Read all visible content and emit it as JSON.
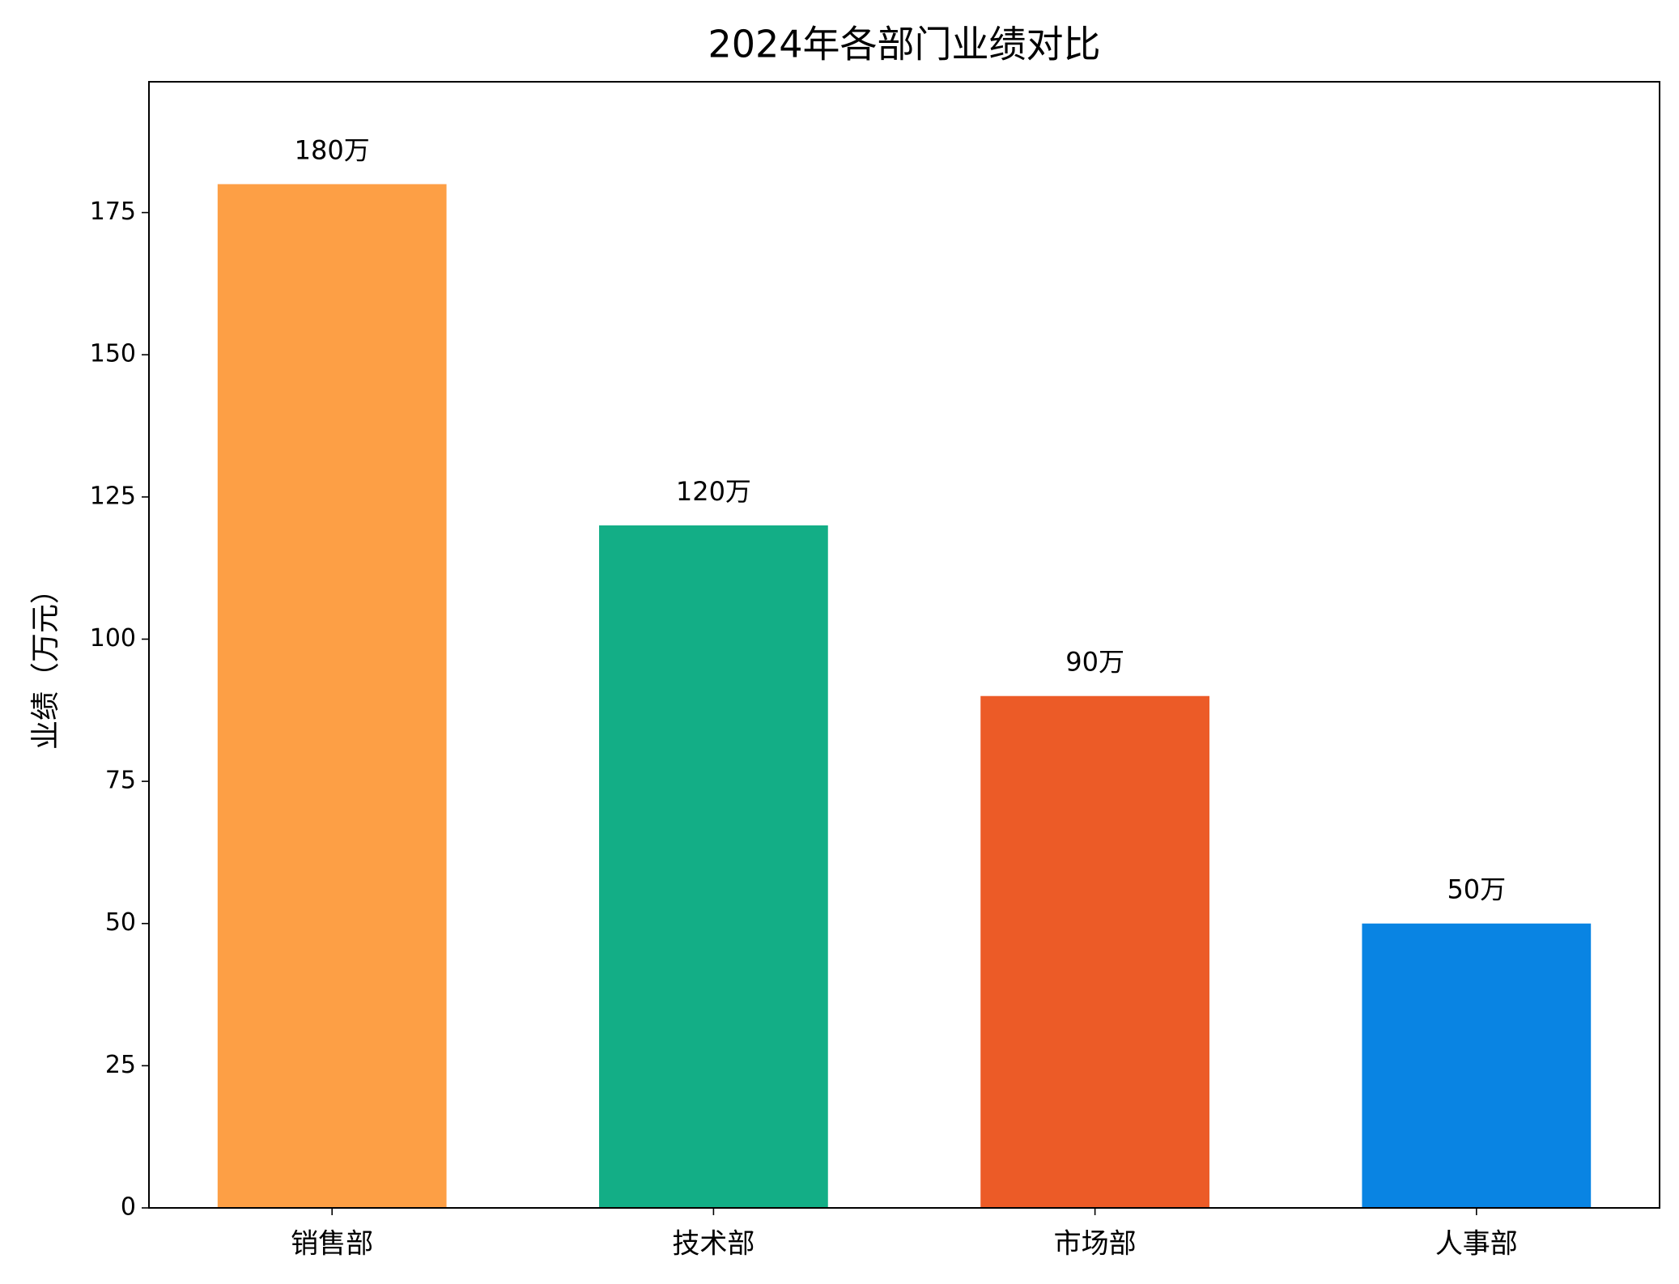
{
  "chart_data": {
    "type": "bar",
    "title": "2024年各部门业绩对比",
    "ylabel": "业绩（万元）",
    "categories": [
      "销售部",
      "技术部",
      "市场部",
      "人事部"
    ],
    "values": [
      180,
      120,
      90,
      50
    ],
    "value_labels": [
      "180万",
      "120万",
      "90万",
      "50万"
    ],
    "colors": [
      "#fd9f45",
      "#13ae86",
      "#ec5b27",
      "#0984e3"
    ],
    "ylim": [
      0,
      198
    ],
    "yticks": [
      0,
      25,
      50,
      75,
      100,
      125,
      150,
      175
    ],
    "grid": false
  }
}
